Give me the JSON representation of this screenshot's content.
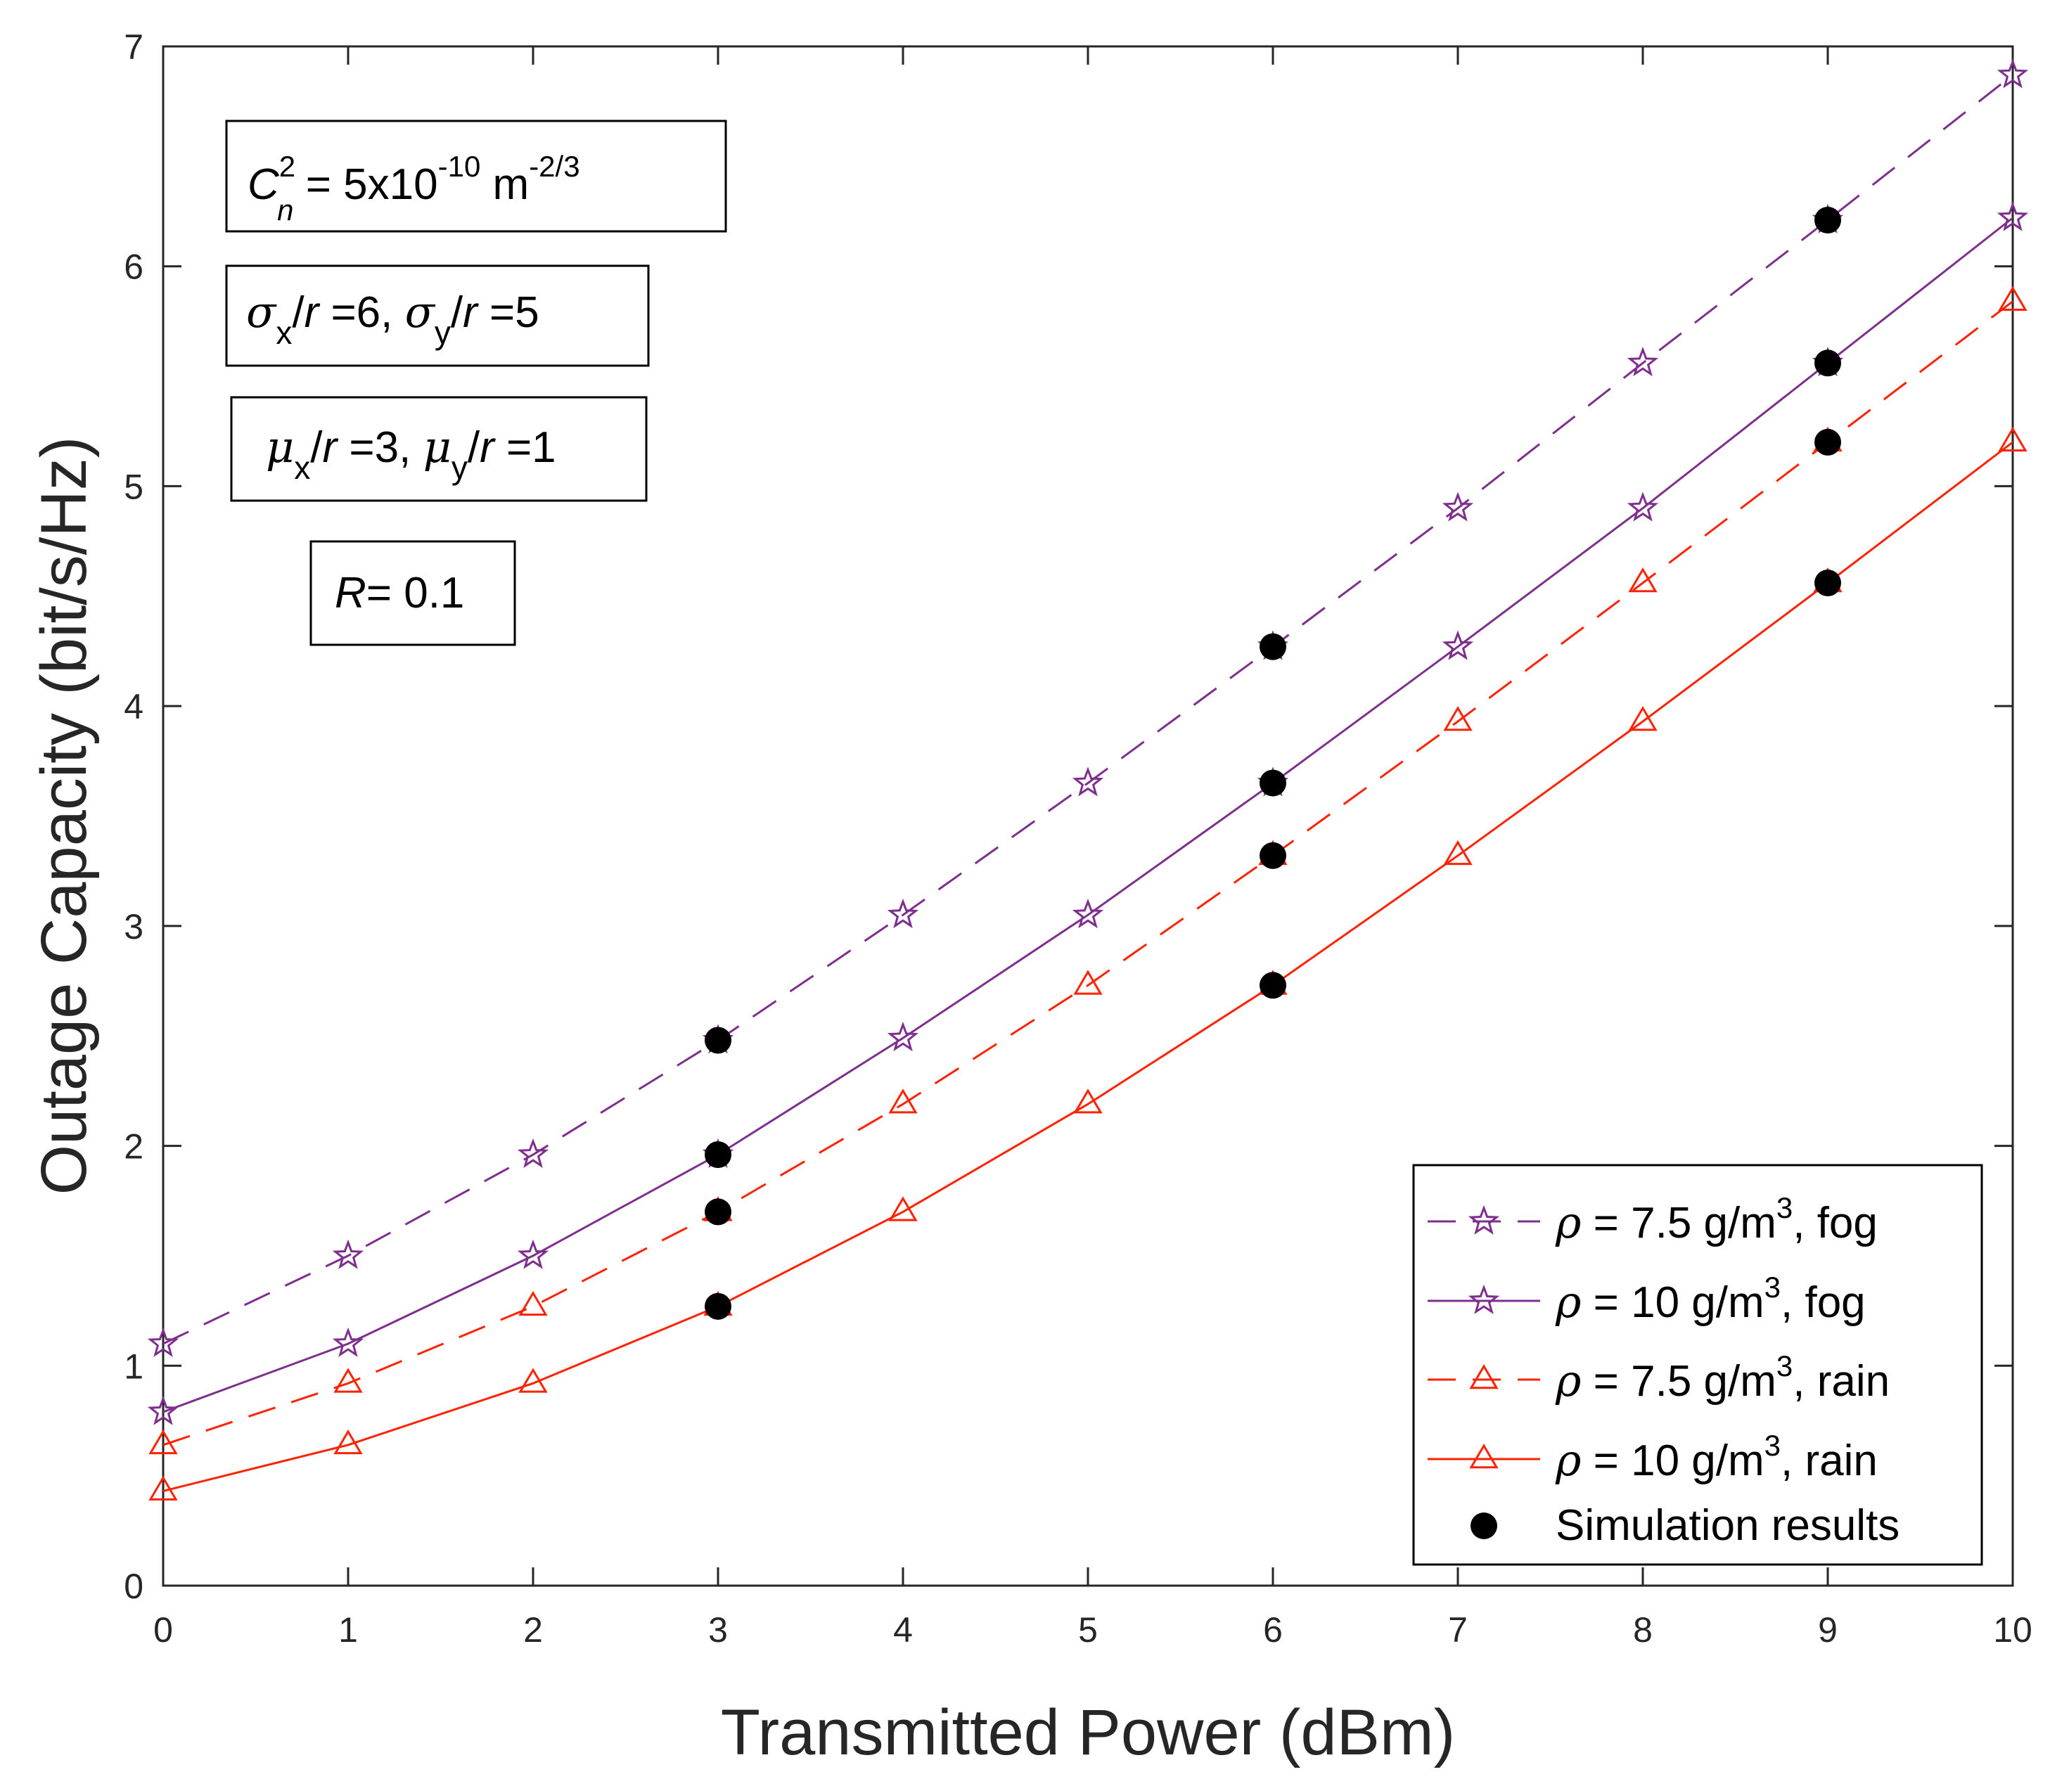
{
  "chart_data": {
    "type": "line",
    "xlabel": "Transmitted Power (dBm)",
    "ylabel": "Outage Capacity (bit/s/Hz)",
    "xlim": [
      0,
      10
    ],
    "ylim": [
      0,
      7
    ],
    "x_ticks": [
      "0",
      "1",
      "2",
      "3",
      "4",
      "5",
      "6",
      "7",
      "8",
      "9",
      "10"
    ],
    "y_ticks": [
      "0",
      "1",
      "2",
      "3",
      "4",
      "5",
      "6",
      "7"
    ],
    "grid": false,
    "legend_position": "bottom-right",
    "x": [
      0,
      1,
      2,
      3,
      4,
      5,
      6,
      7,
      8,
      9,
      10
    ],
    "series": [
      {
        "name": "ρ = 7.5 g/m3, fog",
        "legend": {
          "symbol": "ρ",
          "eq": " = 7.5 g/m",
          "sup": "3",
          "tail": ", fog"
        },
        "color": "#7e2f8e",
        "dash": true,
        "marker": "star",
        "values": [
          1.1,
          1.5,
          1.96,
          2.48,
          3.05,
          3.65,
          4.27,
          4.9,
          5.56,
          6.21,
          6.87
        ]
      },
      {
        "name": "ρ = 10 g/m3, fog",
        "legend": {
          "symbol": "ρ",
          "eq": " = 10 g/m",
          "sup": "3",
          "tail": ",  fog"
        },
        "color": "#7e2f8e",
        "dash": false,
        "marker": "star",
        "values": [
          0.79,
          1.1,
          1.5,
          1.96,
          2.49,
          3.05,
          3.65,
          4.27,
          4.9,
          5.56,
          6.22
        ]
      },
      {
        "name": "ρ = 7.5 g/m3, rain",
        "legend": {
          "symbol": "ρ",
          "eq": " = 7.5 g/m",
          "sup": "3",
          "tail": ", rain"
        },
        "color": "#ff2200",
        "dash": true,
        "marker": "triangle",
        "values": [
          0.64,
          0.92,
          1.27,
          1.7,
          2.19,
          2.73,
          3.32,
          3.93,
          4.56,
          5.2,
          5.84
        ]
      },
      {
        "name": "ρ = 10 g/m3, rain",
        "legend": {
          "symbol": "ρ",
          "eq": " = 10 g/m",
          "sup": "3",
          "tail": ",  rain"
        },
        "color": "#ff2200",
        "dash": false,
        "marker": "triangle",
        "values": [
          0.43,
          0.64,
          0.92,
          1.27,
          1.7,
          2.19,
          2.73,
          3.32,
          3.93,
          4.56,
          5.2
        ]
      }
    ],
    "simulation": {
      "name": "Simulation results",
      "color": "#000000",
      "points": [
        {
          "x": 3,
          "y": 2.48
        },
        {
          "x": 3,
          "y": 1.96
        },
        {
          "x": 3,
          "y": 1.7
        },
        {
          "x": 3,
          "y": 1.27
        },
        {
          "x": 6,
          "y": 4.27
        },
        {
          "x": 6,
          "y": 3.65
        },
        {
          "x": 6,
          "y": 3.32
        },
        {
          "x": 6,
          "y": 2.73
        },
        {
          "x": 9,
          "y": 6.21
        },
        {
          "x": 9,
          "y": 5.56
        },
        {
          "x": 9,
          "y": 5.2
        },
        {
          "x": 9,
          "y": 4.56
        }
      ]
    },
    "annotations": {
      "cn2": {
        "C": "C",
        "sup": "2",
        "sub": "n",
        "eq": " = 5x10",
        "exp": "-10",
        "unit": " m",
        "unit_exp": "-2/3"
      },
      "sigma": {
        "s1": "σ",
        "s1sub": "x",
        "s1r": "/",
        "s1rv": "r",
        "s1val": " =6, ",
        "s2": "σ",
        "s2sub": "y",
        "s2r": "/",
        "s2rv": "r",
        "s2val": " =5"
      },
      "mu": {
        "m1": "μ",
        "m1sub": "x",
        "m1r": "/",
        "m1rv": "r",
        "m1val": " =3, ",
        "m2": "μ",
        "m2sub": "y",
        "m2r": "/",
        "m2rv": "r",
        "m2val": " =1"
      },
      "R": {
        "label": "R",
        "value": "= 0.1"
      }
    }
  }
}
